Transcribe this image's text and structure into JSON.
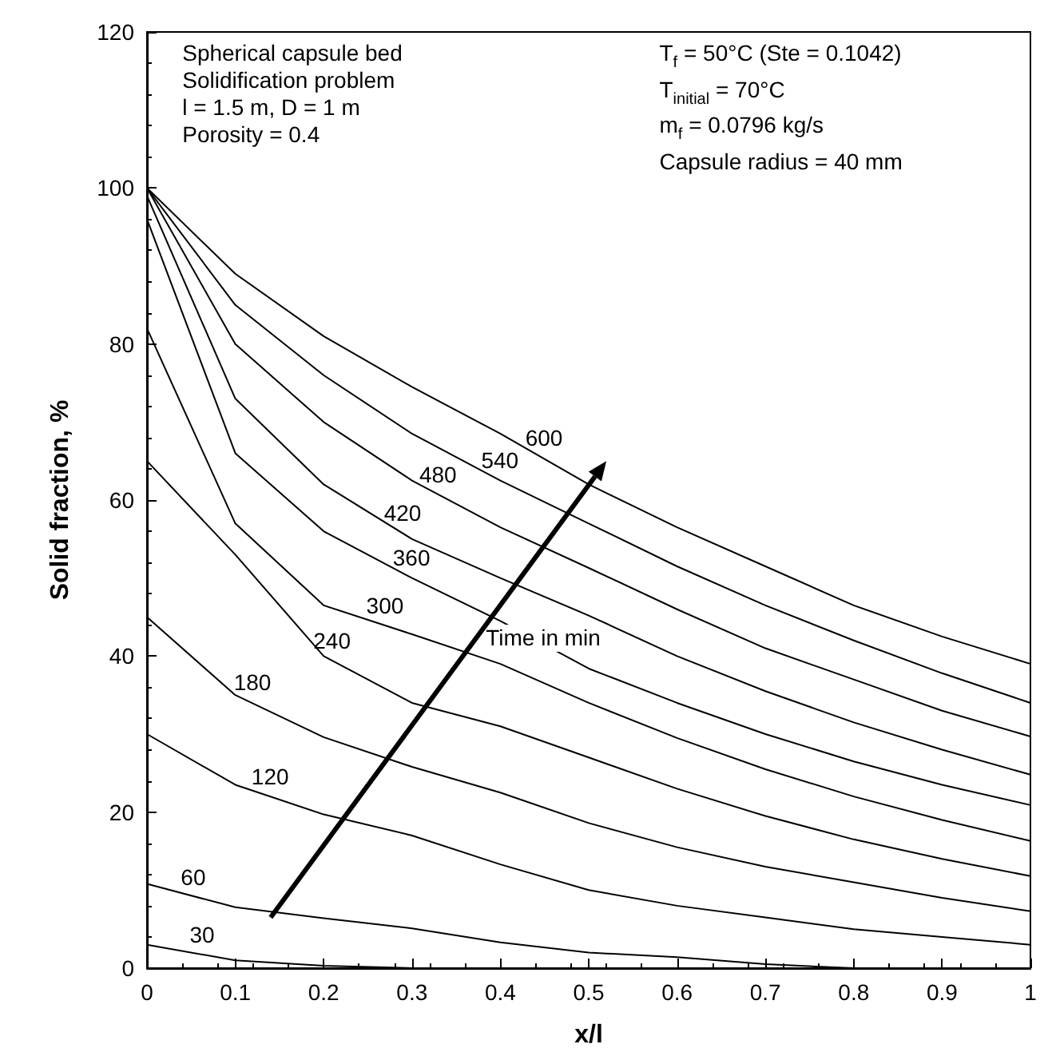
{
  "chart_data": {
    "type": "line",
    "xlabel": "x/l",
    "ylabel": "Solid fraction, %",
    "x": [
      0,
      0.1,
      0.2,
      0.3,
      0.4,
      0.5,
      0.6,
      0.7,
      0.8,
      0.9,
      1
    ],
    "series": [
      {
        "name": "30",
        "color": "#000000",
        "values": [
          3,
          1,
          0.3,
          0,
          0,
          0,
          0,
          0,
          0,
          0,
          0
        ]
      },
      {
        "name": "60",
        "color": "#000000",
        "values": [
          10.8,
          7.8,
          6.4,
          5.1,
          3.3,
          2,
          1.4,
          0.5,
          0,
          0,
          0
        ]
      },
      {
        "name": "120",
        "color": "#000000",
        "values": [
          30,
          23.5,
          19.7,
          17,
          13.3,
          10,
          8,
          6.5,
          5,
          4,
          3
        ]
      },
      {
        "name": "180",
        "color": "#000000",
        "values": [
          45,
          35,
          29.6,
          25.8,
          22.5,
          18.6,
          15.5,
          13,
          11,
          9,
          7.3
        ]
      },
      {
        "name": "240",
        "color": "#000000",
        "values": [
          65,
          53,
          40,
          34,
          31,
          27,
          23,
          19.5,
          16.5,
          14,
          11.8
        ]
      },
      {
        "name": "300",
        "color": "#000000",
        "values": [
          82,
          57,
          46.5,
          42.8,
          39,
          34,
          29.5,
          25.5,
          22,
          19,
          16.3
        ]
      },
      {
        "name": "360",
        "color": "#000000",
        "values": [
          96,
          66,
          56,
          50,
          44.5,
          38.4,
          34,
          30,
          26.5,
          23.5,
          20.9
        ]
      },
      {
        "name": "420",
        "color": "#000000",
        "values": [
          99,
          73,
          62,
          55,
          50,
          45.2,
          40,
          35.5,
          31.5,
          28,
          24.8
        ]
      },
      {
        "name": "480",
        "color": "#000000",
        "values": [
          100,
          80,
          70,
          62.5,
          56.5,
          51.3,
          46,
          41,
          37,
          33,
          29.7
        ]
      },
      {
        "name": "540",
        "color": "#000000",
        "values": [
          100,
          85,
          76,
          68.5,
          62.5,
          57,
          51.5,
          46.5,
          42,
          37.8,
          34
        ]
      },
      {
        "name": "600",
        "color": "#000000",
        "values": [
          100,
          89,
          81,
          74.5,
          68.5,
          62,
          56.5,
          51.5,
          46.5,
          42.5,
          39
        ]
      }
    ],
    "xlim": [
      0,
      1
    ],
    "xticks": [
      0,
      0.1,
      0.2,
      0.3,
      0.4,
      0.5,
      0.6,
      0.7,
      0.8,
      0.9,
      1
    ],
    "ylim": [
      0,
      120
    ],
    "yticks": [
      0,
      20,
      40,
      60,
      80,
      100,
      120
    ],
    "line_style": "solid",
    "grid": false,
    "legend": false,
    "annotations": [
      "Spherical capsule bed",
      "Solidification problem",
      "l = 1.5 m, D = 1 m",
      "Porosity = 0.4",
      "T$_{f}$ = 50°C (Ste = 0.1042)",
      "T$_{initial}$ = 70°C",
      "m$_{f}$ = 0.0796 kg/s",
      "Capsule radius = 40 mm",
      "Time in min"
    ]
  }
}
